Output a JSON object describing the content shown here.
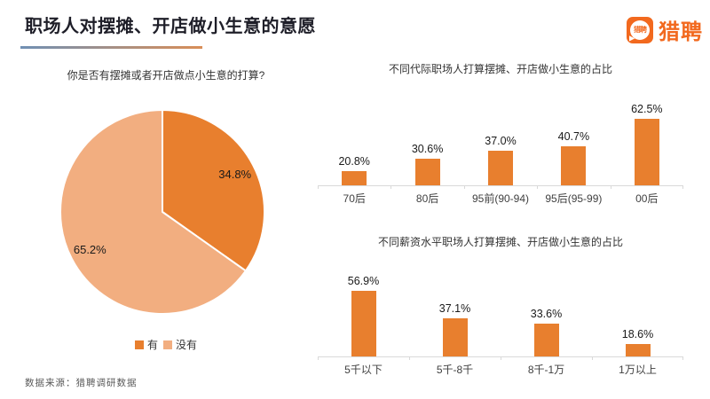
{
  "page": {
    "title": "职场人对摆摊、开店做小生意的意愿",
    "source_note": "数据来源：猎聘调研数据"
  },
  "logo": {
    "brand": "猎聘",
    "icon_text": "猎聘",
    "color": "#f2691e"
  },
  "colors": {
    "primary_orange": "#e87f2e",
    "light_orange": "#f2ae80",
    "axis_gray": "#d9d9d9",
    "underline_gradient_from": "#7090b4",
    "underline_gradient_to": "#d98e57"
  },
  "chart_data": [
    {
      "id": "pie-intent",
      "type": "pie",
      "title": "你是否有摆摊或者开店做点小生意的打算?",
      "labels": [
        "有",
        "没有"
      ],
      "values": [
        34.8,
        65.2
      ],
      "value_labels": [
        "34.8%",
        "65.2%"
      ],
      "colors": [
        "#e87f2e",
        "#f2ae80"
      ],
      "legend_position": "bottom",
      "start_angle_deg": 0,
      "direction": "clockwise"
    },
    {
      "id": "bar-generation",
      "type": "bar",
      "title": "不同代际职场人打算摆摊、开店做小生意的占比",
      "categories": [
        "70后",
        "80后",
        "95前(90-94)",
        "95后(95-99)",
        "00后"
      ],
      "values": [
        20.8,
        30.6,
        37.0,
        40.7,
        62.5
      ],
      "value_labels": [
        "20.8%",
        "30.6%",
        "37.0%",
        "40.7%",
        "62.5%"
      ],
      "bar_color": "#e87f2e",
      "ylabel": "",
      "xlabel": "",
      "ylim": [
        10,
        65
      ],
      "grid": false,
      "legend": "none"
    },
    {
      "id": "bar-salary",
      "type": "bar",
      "title": "不同薪资水平职场人打算摆摊、开店做小生意的占比",
      "categories": [
        "5千以下",
        "5千-8千",
        "8千-1万",
        "1万以上"
      ],
      "values": [
        56.9,
        37.1,
        33.6,
        18.6
      ],
      "value_labels": [
        "56.9%",
        "37.1%",
        "33.6%",
        "18.6%"
      ],
      "bar_color": "#e87f2e",
      "ylabel": "",
      "xlabel": "",
      "ylim": [
        10,
        60
      ],
      "grid": false,
      "legend": "none"
    }
  ]
}
